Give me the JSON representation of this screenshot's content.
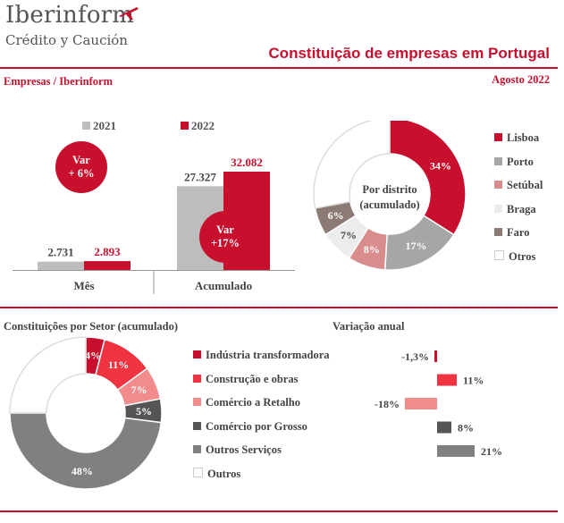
{
  "header": {
    "logo_name": "Iberinform",
    "logo_sub": "Crédito y Caución",
    "title": "Constituição de empresas em Portugal",
    "left_caption": "Empresas / Iberinform",
    "date": "Agosto 2022"
  },
  "colors": {
    "accent": "#c8102e",
    "gray_2021": "#bdbdbd"
  },
  "chart_data": [
    {
      "type": "bar",
      "categories": [
        "Mês",
        "Acumulado"
      ],
      "series": [
        {
          "name": "2021",
          "values": [
            2731,
            27327
          ],
          "labels": [
            "2.731",
            "27.327"
          ],
          "color": "#bdbdbd"
        },
        {
          "name": "2022",
          "values": [
            2893,
            32082
          ],
          "labels": [
            "2.893",
            "32.082"
          ],
          "color": "#c8102e"
        }
      ],
      "annotations": [
        {
          "category": "Mês",
          "line1": "Var",
          "line2": "+ 6%"
        },
        {
          "category": "Acumulado",
          "line1": "Var",
          "line2": "+17%"
        }
      ]
    },
    {
      "type": "pie",
      "title": "Por distrito (acumulado)",
      "center_line1": "Por distrito",
      "center_line2": "(acumulado)",
      "slices": [
        {
          "name": "Lisboa",
          "value": 34,
          "label": "34%",
          "color": "#c8102e",
          "label_color": "#ffffff"
        },
        {
          "name": "Porto",
          "value": 17,
          "label": "17%",
          "color": "#a6a6a6",
          "label_color": "#ffffff"
        },
        {
          "name": "Setúbal",
          "value": 8,
          "label": "8%",
          "color": "#d98c8c",
          "label_color": "#ffffff"
        },
        {
          "name": "Braga",
          "value": 7,
          "label": "7%",
          "color": "#ececec",
          "label_color": "#444444"
        },
        {
          "name": "Faro",
          "value": 6,
          "label": "6%",
          "color": "#8c7b75",
          "label_color": "#ffffff"
        },
        {
          "name": "Otros",
          "value": 28,
          "label": "",
          "color": "#ffffff",
          "label_color": "#444444"
        }
      ]
    },
    {
      "type": "pie",
      "title": "Constituições por Setor (acumulado)",
      "slices": [
        {
          "name": "Indústria transformadora",
          "value": 4,
          "label": "4%",
          "color": "#c8102e",
          "label_color": "#ffffff"
        },
        {
          "name": "Construção e obras",
          "value": 11,
          "label": "11%",
          "color": "#ef3340",
          "label_color": "#ffffff"
        },
        {
          "name": "Comércio a Retalho",
          "value": 7,
          "label": "7%",
          "color": "#f28b8b",
          "label_color": "#ffffff"
        },
        {
          "name": "Comércio por Grosso",
          "value": 5,
          "label": "5%",
          "color": "#555555",
          "label_color": "#ffffff"
        },
        {
          "name": "Outros Serviços",
          "value": 48,
          "label": "48%",
          "color": "#808080",
          "label_color": "#ffffff"
        },
        {
          "name": "Outros",
          "value": 25,
          "label": "",
          "color": "#ffffff",
          "label_color": "#444444"
        }
      ]
    },
    {
      "type": "bar",
      "title": "Variação anual",
      "orientation": "horizontal",
      "categories": [
        "Indústria transformadora",
        "Construção e obras",
        "Comércio a Retalho",
        "Comércio por Grosso",
        "Outros Serviços"
      ],
      "values": [
        -1.3,
        11,
        -18,
        8,
        21
      ],
      "labels": [
        "-1,3%",
        "11%",
        "-18%",
        "8%",
        "21%"
      ],
      "colors": [
        "#c8102e",
        "#ef3340",
        "#f28b8b",
        "#555555",
        "#808080"
      ]
    }
  ]
}
